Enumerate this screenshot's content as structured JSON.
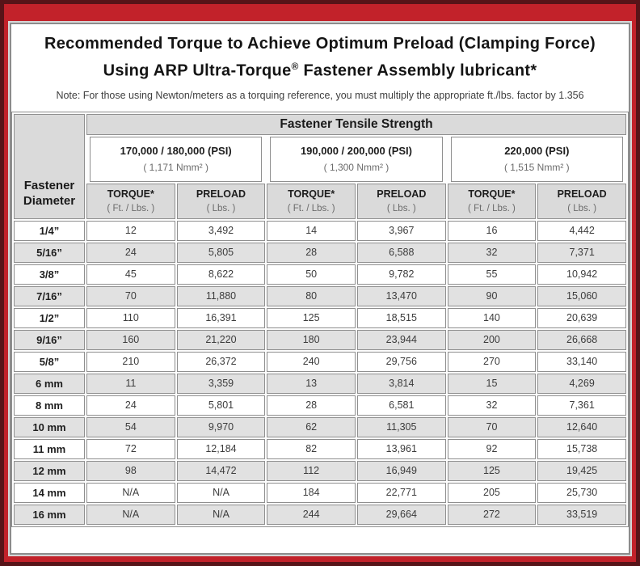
{
  "colors": {
    "frame_outer_maroon": "#571418",
    "frame_red": "#c2222a",
    "header_gray": "#dadada",
    "row_alt_gray": "#e1e1e1",
    "cell_border_gray": "#8f8f8f"
  },
  "title": {
    "line1": "Recommended Torque to Achieve Optimum Preload (Clamping Force)",
    "line2_prefix": "Using ARP Ultra-Torque",
    "registered_mark": "®",
    "line2_suffix": " Fastener Assembly lubricant*"
  },
  "note": "Note: For those using Newton/meters as a torquing reference, you must multiply the appropriate ft./lbs. factor by 1.356",
  "table": {
    "corner_line1": "Fastener",
    "corner_line2": "Diameter",
    "tensile_header": "Fastener Tensile Strength",
    "strength_groups": [
      {
        "psi": "170,000 / 180,000 (PSI)",
        "nmm": "( 1,171 Nmm² )"
      },
      {
        "psi": "190,000 / 200,000 (PSI)",
        "nmm": "( 1,300 Nmm² )"
      },
      {
        "psi": "220,000 (PSI)",
        "nmm": "( 1,515 Nmm² )"
      }
    ],
    "column_headers": [
      {
        "main": "TORQUE*",
        "sub": "( Ft. / Lbs. )"
      },
      {
        "main": "PRELOAD",
        "sub": "( Lbs. )"
      },
      {
        "main": "TORQUE*",
        "sub": "( Ft. / Lbs. )"
      },
      {
        "main": "PRELOAD",
        "sub": "( Lbs. )"
      },
      {
        "main": "TORQUE*",
        "sub": "( Ft. / Lbs. )"
      },
      {
        "main": "PRELOAD",
        "sub": "( Lbs. )"
      }
    ],
    "rows": [
      {
        "diameter": "1/4”",
        "values": [
          "12",
          "3,492",
          "14",
          "3,967",
          "16",
          "4,442"
        ]
      },
      {
        "diameter": "5/16”",
        "values": [
          "24",
          "5,805",
          "28",
          "6,588",
          "32",
          "7,371"
        ]
      },
      {
        "diameter": "3/8”",
        "values": [
          "45",
          "8,622",
          "50",
          "9,782",
          "55",
          "10,942"
        ]
      },
      {
        "diameter": "7/16”",
        "values": [
          "70",
          "11,880",
          "80",
          "13,470",
          "90",
          "15,060"
        ]
      },
      {
        "diameter": "1/2”",
        "values": [
          "110",
          "16,391",
          "125",
          "18,515",
          "140",
          "20,639"
        ]
      },
      {
        "diameter": "9/16”",
        "values": [
          "160",
          "21,220",
          "180",
          "23,944",
          "200",
          "26,668"
        ]
      },
      {
        "diameter": "5/8”",
        "values": [
          "210",
          "26,372",
          "240",
          "29,756",
          "270",
          "33,140"
        ]
      },
      {
        "diameter": "6 mm",
        "values": [
          "11",
          "3,359",
          "13",
          "3,814",
          "15",
          "4,269"
        ]
      },
      {
        "diameter": "8 mm",
        "values": [
          "24",
          "5,801",
          "28",
          "6,581",
          "32",
          "7,361"
        ]
      },
      {
        "diameter": "10 mm",
        "values": [
          "54",
          "9,970",
          "62",
          "11,305",
          "70",
          "12,640"
        ]
      },
      {
        "diameter": "11 mm",
        "values": [
          "72",
          "12,184",
          "82",
          "13,961",
          "92",
          "15,738"
        ]
      },
      {
        "diameter": "12 mm",
        "values": [
          "98",
          "14,472",
          "112",
          "16,949",
          "125",
          "19,425"
        ]
      },
      {
        "diameter": "14 mm",
        "values": [
          "N/A",
          "N/A",
          "184",
          "22,771",
          "205",
          "25,730"
        ]
      },
      {
        "diameter": "16 mm",
        "values": [
          "N/A",
          "N/A",
          "244",
          "29,664",
          "272",
          "33,519"
        ]
      }
    ]
  }
}
